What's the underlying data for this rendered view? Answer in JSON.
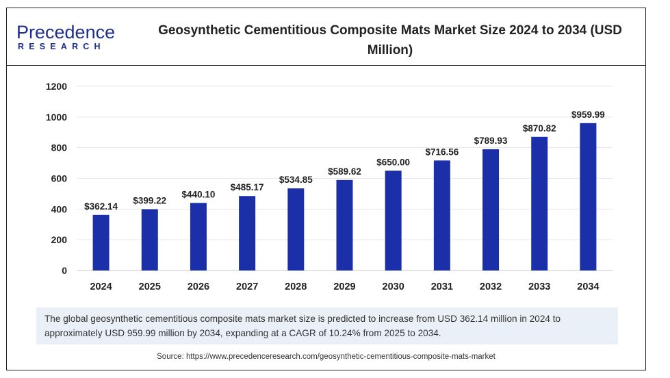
{
  "brand": {
    "name_top": "Precedence",
    "name_bottom": "RESEARCH",
    "color": "#1c2f8c"
  },
  "title": "Geosynthetic Cementitious Composite Mats Market Size 2024 to 2034 (USD Million)",
  "description": "The global geosynthetic cementitious composite mats market size is predicted to increase from USD 362.14 million in 2024 to approximately USD 959.99 million by 2034, expanding at a CAGR of 10.24% from 2025 to 2034.",
  "source": "Source: https://www.precedenceresearch.com/geosynthetic-cementitious-composite-mats-market",
  "chart_data": {
    "type": "bar",
    "title": "Geosynthetic Cementitious Composite Mats Market Size 2024 to 2034 (USD Million)",
    "categories": [
      "2024",
      "2025",
      "2026",
      "2027",
      "2028",
      "2029",
      "2030",
      "2031",
      "2032",
      "2033",
      "2034"
    ],
    "values": [
      362.14,
      399.22,
      440.1,
      485.17,
      534.85,
      589.62,
      650.0,
      716.56,
      789.93,
      870.82,
      959.99
    ],
    "data_labels": [
      "$362.14",
      "$399.22",
      "$440.10",
      "$485.17",
      "$534.85",
      "$589.62",
      "$650.00",
      "$716.56",
      "$789.93",
      "$870.82",
      "$959.99"
    ],
    "yticks": [
      0,
      200,
      400,
      600,
      800,
      1000,
      1200
    ],
    "ylim": [
      0,
      1200
    ],
    "xlabel": "",
    "ylabel": "",
    "bar_color": "#1a2fa8",
    "grid": true,
    "legend": "none"
  }
}
